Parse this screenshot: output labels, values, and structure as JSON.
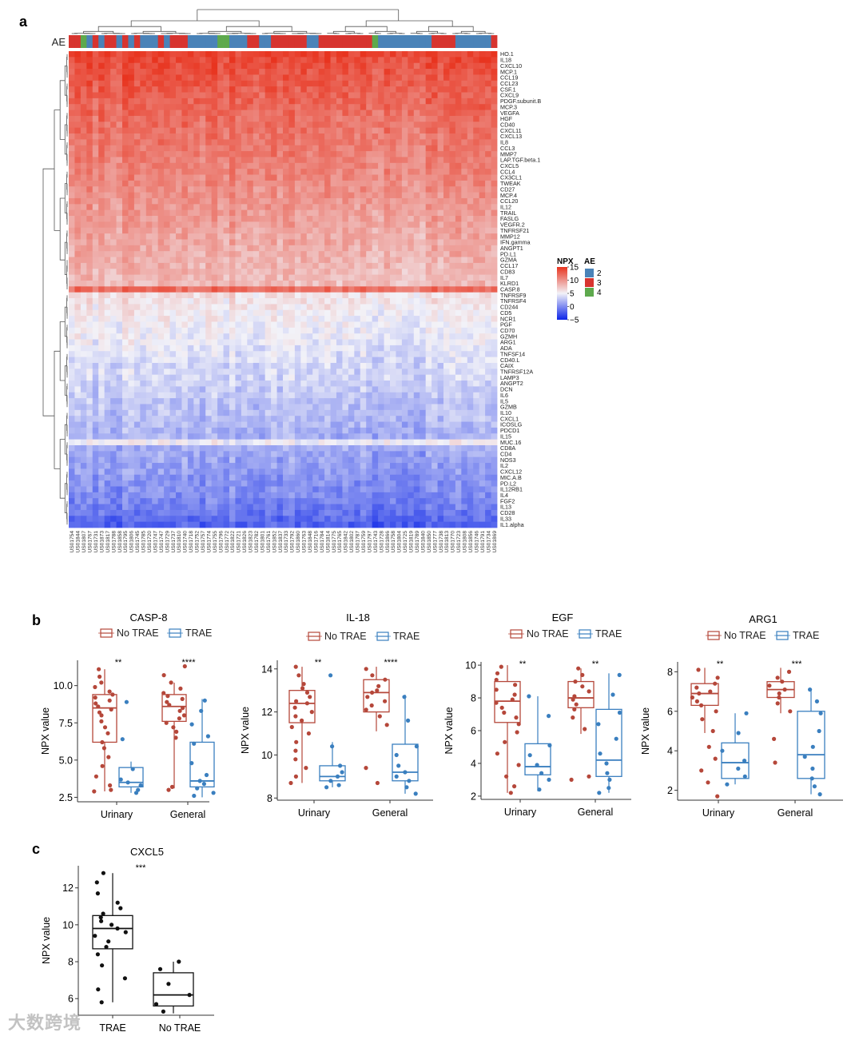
{
  "panels": {
    "a": "a",
    "b": "b",
    "c": "c"
  },
  "colors": {
    "no_trae": "#b5473a",
    "trae": "#3a7fbf",
    "ae2": "#4a83b8",
    "ae3": "#d7342f",
    "ae4": "#5ea94d",
    "heat_low": "#0b24e8",
    "heat_mid": "#f2f2f8",
    "heat_high": "#e8341f"
  },
  "chart_data": [
    {
      "type": "heatmap",
      "title": "",
      "annotation_label": "AE",
      "legend": {
        "npx_title": "NPX",
        "ae_title": "AE",
        "npx_ticks": [
          15,
          10,
          5,
          0,
          -5
        ],
        "ae_levels": [
          "2",
          "3",
          "4"
        ],
        "placement": "right"
      },
      "zlim": [
        -5,
        15
      ],
      "row_labels": [
        "HO.1",
        "IL18",
        "CXCL10",
        "MCP.1",
        "CCL19",
        "CCL23",
        "CSF.1",
        "CXCL9",
        "PDGF.subunit.B",
        "MCP.3",
        "VEGFA",
        "HGF",
        "CD40",
        "CXCL11",
        "CXCL13",
        "IL8",
        "CCL3",
        "MMP7",
        "LAP.TGF.beta.1",
        "CXCL5",
        "CCL4",
        "CX3CL1",
        "TWEAK",
        "CD27",
        "MCP.4",
        "CCL20",
        "IL12",
        "TRAIL",
        "FASLG",
        "VEGFR.2",
        "TNFRSF21",
        "MMP12",
        "IFN.gamma",
        "ANGPT1",
        "PD.L1",
        "GZMA",
        "CCL17",
        "CD83",
        "IL7",
        "KLRD1",
        "CASP.8",
        "TNFRSF9",
        "TNFRSF4",
        "CD244",
        "CD5",
        "NCR1",
        "PGF",
        "CD70",
        "GZMH",
        "ARG1",
        "ADA",
        "TNFSF14",
        "CD40.L",
        "CAIX",
        "TNFRSF12A",
        "LAMP3",
        "ANGPT2",
        "DCN",
        "IL6",
        "IL5",
        "GZMB",
        "IL10",
        "CXCL1",
        "ICOSLG",
        "PDCD1",
        "IL15",
        "MUC.16",
        "CD8A",
        "CD4",
        "NOS3",
        "IL2",
        "CXCL12",
        "MIC.A.B",
        "PD.L2",
        "IL12RB1",
        "IL4",
        "FGF2",
        "IL13",
        "CD28",
        "IL33",
        "IL1.alpha"
      ],
      "row_labels_shown": [
        "HO.1",
        "IL18",
        "CXCL10",
        "MCP.1",
        "CCL19",
        "CCL23",
        "CSF.1",
        "CXCL9",
        "PDGF.subunit.B",
        "MCP.3",
        "VEGFA",
        "HGF",
        "CD40",
        "CXCL11",
        "CXCL13",
        "IL8",
        "CCL3",
        "MMP7",
        "LAP.TGF.beta.1",
        "CXCL5",
        "CCL4",
        "CX3CL1",
        "TWEAK",
        "CD27",
        "MCP.4",
        "CCL20",
        "IL12",
        "TRAIL",
        "FASLG",
        "VEGFR.2",
        "TNFRSF21",
        "MMP12",
        "IFN.gamma",
        "ANGPT1",
        "PD.L1",
        "GZMA",
        "CCL17",
        "CD83",
        "IL7",
        "KLRD1",
        "CASP.8",
        "TNFRSF9",
        "TNFRSF4",
        "CD244",
        "CD5",
        "NCR1",
        "PGF",
        "CD70",
        "GZMH",
        "ARG1",
        "ADA",
        "TNFSF14",
        "CD40.L",
        "CAIX",
        "TNFRSF12A",
        "LAMP3",
        "ANGPT2",
        "DCN",
        "IL6",
        "IL5",
        "GZMB",
        "IL10",
        "CXCL1",
        "ICOSLG",
        "PDCD1",
        "IL15",
        "MUC.16",
        "CD8A",
        "CD4",
        "NOS3",
        "IL2",
        "CXCL12",
        "MIC.A.B",
        "PD.L2",
        "IL12RB1",
        "IL4",
        "FGF2",
        "IL13",
        "CD28",
        "IL33",
        "IL1.alpha"
      ],
      "row_profile": [
        14.2,
        13.9,
        13.6,
        13.4,
        13.3,
        13.1,
        12.9,
        12.7,
        12.6,
        12.4,
        12.2,
        12.0,
        11.9,
        11.8,
        11.7,
        11.5,
        11.4,
        11.3,
        11.1,
        11.0,
        10.9,
        10.7,
        10.5,
        10.3,
        10.2,
        10.0,
        9.8,
        9.7,
        9.5,
        9.4,
        9.2,
        9.0,
        8.9,
        8.8,
        8.6,
        8.5,
        8.4,
        8.2,
        8.0,
        7.9,
        12.0,
        6.0,
        5.8,
        5.6,
        5.4,
        5.2,
        5.0,
        4.9,
        4.8,
        4.6,
        4.4,
        4.2,
        4.0,
        3.8,
        3.7,
        3.6,
        3.4,
        3.2,
        3.0,
        2.8,
        2.6,
        2.5,
        2.4,
        2.2,
        2.0,
        1.8,
        5.0,
        1.6,
        1.4,
        1.2,
        1.0,
        0.8,
        0.6,
        0.4,
        0.2,
        0.0,
        -0.2,
        -0.6,
        -1.0,
        -1.4,
        -2.0
      ],
      "n_samples": 72,
      "ae_annotation": [
        3,
        3,
        4,
        2,
        3,
        2,
        3,
        3,
        2,
        3,
        2,
        3,
        2,
        2,
        2,
        3,
        2,
        3,
        3,
        3,
        2,
        2,
        2,
        2,
        2,
        4,
        4,
        2,
        2,
        2,
        3,
        3,
        2,
        2,
        3,
        3,
        3,
        3,
        3,
        3,
        2,
        2,
        3,
        3,
        3,
        3,
        3,
        3,
        3,
        3,
        3,
        4,
        2,
        2,
        2,
        2,
        2,
        2,
        2,
        2,
        2,
        3,
        3,
        3,
        3,
        2,
        2,
        2,
        2,
        2,
        2,
        3,
        3,
        3,
        2,
        3,
        3,
        4,
        2,
        2,
        3,
        3,
        2,
        4,
        4,
        4,
        3,
        3
      ],
      "column_labels": [
        "US01754",
        "US01844",
        "US01807",
        "US01767",
        "US01731",
        "US01873",
        "US01817",
        "US01788",
        "US01858",
        "US01795",
        "US01806",
        "US01745",
        "US01785",
        "US01720",
        "US01747",
        "US01747",
        "US01729",
        "US01737",
        "US01810",
        "US01740",
        "US01718",
        "US01752",
        "US01757",
        "US01774",
        "US01755",
        "US01796",
        "US01772",
        "US01822",
        "US01721",
        "US01826",
        "US01823",
        "US01782",
        "US01801",
        "US01761",
        "US01852",
        "US01837",
        "US01733",
        "US01792",
        "US01860",
        "US01763",
        "US01848",
        "US01716",
        "US01784",
        "US01814",
        "US01775",
        "US01765",
        "US01842",
        "US01802",
        "US01787",
        "US01759",
        "US01797",
        "US01743",
        "US01728",
        "US01866",
        "US01758",
        "US01804",
        "US01725",
        "US01819",
        "US01789",
        "US01840",
        "US01850",
        "US01777",
        "US01738",
        "US01813",
        "US01770",
        "US01723",
        "US01808",
        "US01856",
        "US01746",
        "US01791",
        "US01734",
        "US01869"
      ]
    },
    {
      "type": "box",
      "title": "CASP-8",
      "legend": [
        "No TRAE",
        "TRAE"
      ],
      "xlabel": "",
      "ylabel": "NPX value",
      "categories": [
        "Urinary",
        "General"
      ],
      "ylim": [
        2.2,
        11.7
      ],
      "yticks": [
        "2.5",
        "5.0",
        "7.5",
        "10.0"
      ],
      "significance": [
        "**",
        "****"
      ],
      "groups": [
        {
          "category": "Urinary",
          "series": "No TRAE",
          "q1": 6.2,
          "median": 8.5,
          "q3": 9.4,
          "lo": 2.9,
          "hi": 11.1,
          "points": [
            11.1,
            10.6,
            10.2,
            9.9,
            9.6,
            9.4,
            9.2,
            9.0,
            8.8,
            8.6,
            8.4,
            8.2,
            8.0,
            7.6,
            7.2,
            6.8,
            6.2,
            5.8,
            5.2,
            4.6,
            3.9,
            3.3,
            3.0,
            2.9
          ]
        },
        {
          "category": "Urinary",
          "series": "TRAE",
          "q1": 3.2,
          "median": 3.5,
          "q3": 4.5,
          "lo": 2.8,
          "hi": 4.9,
          "points": [
            8.9,
            6.4,
            4.4,
            3.7,
            3.5,
            3.3,
            3.0,
            2.8
          ]
        },
        {
          "category": "General",
          "series": "No TRAE",
          "q1": 7.6,
          "median": 8.6,
          "q3": 9.4,
          "lo": 3.1,
          "hi": 10.2,
          "points": [
            11.3,
            10.7,
            10.2,
            9.8,
            9.5,
            9.3,
            9.1,
            8.9,
            8.7,
            8.5,
            8.3,
            8.0,
            7.8,
            7.5,
            7.2,
            6.9,
            6.5,
            3.2,
            3.0
          ]
        },
        {
          "category": "General",
          "series": "TRAE",
          "q1": 3.2,
          "median": 3.6,
          "q3": 6.2,
          "lo": 2.5,
          "hi": 9.1,
          "points": [
            9.0,
            8.3,
            7.4,
            6.6,
            6.1,
            4.8,
            4.0,
            3.6,
            3.4,
            3.1,
            2.8,
            2.6
          ]
        }
      ]
    },
    {
      "type": "box",
      "title": "IL-18",
      "legend": [
        "No TRAE",
        "TRAE"
      ],
      "xlabel": "",
      "ylabel": "NPX value",
      "categories": [
        "Urinary",
        "General"
      ],
      "ylim": [
        7.9,
        14.4
      ],
      "yticks": [
        "8",
        "10",
        "12",
        "14"
      ],
      "significance": [
        "**",
        "****"
      ],
      "groups": [
        {
          "category": "Urinary",
          "series": "No TRAE",
          "q1": 11.5,
          "median": 12.4,
          "q3": 13.0,
          "lo": 8.7,
          "hi": 14.1,
          "points": [
            14.1,
            13.7,
            13.3,
            13.1,
            12.9,
            12.7,
            12.5,
            12.4,
            12.2,
            12.0,
            11.8,
            11.6,
            11.3,
            11.0,
            10.6,
            10.2,
            9.8,
            9.4,
            9.0,
            8.7
          ]
        },
        {
          "category": "Urinary",
          "series": "TRAE",
          "q1": 8.8,
          "median": 9.0,
          "q3": 9.5,
          "lo": 8.5,
          "hi": 10.6,
          "points": [
            13.7,
            10.4,
            9.5,
            9.2,
            9.0,
            8.8,
            8.6,
            8.5
          ]
        },
        {
          "category": "General",
          "series": "No TRAE",
          "q1": 12.0,
          "median": 12.9,
          "q3": 13.5,
          "lo": 11.1,
          "hi": 14.1,
          "points": [
            14.0,
            13.7,
            13.5,
            13.2,
            13.0,
            12.9,
            12.7,
            12.5,
            12.3,
            12.1,
            11.8,
            11.4,
            9.4,
            8.7
          ]
        },
        {
          "category": "General",
          "series": "TRAE",
          "q1": 8.8,
          "median": 9.2,
          "q3": 10.5,
          "lo": 8.2,
          "hi": 12.8,
          "points": [
            12.7,
            11.6,
            10.4,
            10.0,
            9.5,
            9.2,
            9.0,
            8.8,
            8.5,
            8.2
          ]
        }
      ]
    },
    {
      "type": "box",
      "title": "EGF",
      "legend": [
        "No TRAE",
        "TRAE"
      ],
      "xlabel": "",
      "ylabel": "NPX value",
      "categories": [
        "Urinary",
        "General"
      ],
      "ylim": [
        1.8,
        10.2
      ],
      "yticks": [
        "2",
        "4",
        "6",
        "8",
        "10"
      ],
      "significance": [
        "**",
        "**"
      ],
      "groups": [
        {
          "category": "Urinary",
          "series": "No TRAE",
          "q1": 6.5,
          "median": 7.8,
          "q3": 9.0,
          "lo": 2.2,
          "hi": 10.0,
          "points": [
            9.9,
            9.5,
            9.1,
            8.8,
            8.5,
            8.2,
            7.9,
            7.7,
            7.4,
            7.1,
            6.8,
            6.4,
            5.9,
            5.3,
            4.6,
            3.9,
            3.2,
            2.6,
            2.2
          ]
        },
        {
          "category": "Urinary",
          "series": "TRAE",
          "q1": 3.3,
          "median": 3.8,
          "q3": 5.2,
          "lo": 2.3,
          "hi": 8.1,
          "points": [
            8.1,
            6.9,
            5.1,
            4.5,
            3.9,
            3.4,
            3.0,
            2.4
          ]
        },
        {
          "category": "General",
          "series": "No TRAE",
          "q1": 7.4,
          "median": 8.0,
          "q3": 9.0,
          "lo": 5.8,
          "hi": 9.8,
          "points": [
            9.8,
            9.4,
            9.0,
            8.7,
            8.4,
            8.1,
            7.9,
            7.6,
            7.3,
            6.8,
            6.1,
            3.2,
            3.0
          ]
        },
        {
          "category": "General",
          "series": "TRAE",
          "q1": 3.2,
          "median": 4.2,
          "q3": 7.3,
          "lo": 2.2,
          "hi": 9.5,
          "points": [
            9.4,
            8.2,
            7.1,
            6.4,
            5.5,
            4.6,
            4.0,
            3.4,
            3.0,
            2.5,
            2.2
          ]
        }
      ]
    },
    {
      "type": "box",
      "title": "ARG1",
      "legend": [
        "No TRAE",
        "TRAE"
      ],
      "xlabel": "",
      "ylabel": "NPX value",
      "categories": [
        "Urinary",
        "General"
      ],
      "ylim": [
        1.5,
        8.5
      ],
      "yticks": [
        "2",
        "4",
        "6",
        "8"
      ],
      "significance": [
        "**",
        "***"
      ],
      "groups": [
        {
          "category": "Urinary",
          "series": "No TRAE",
          "q1": 6.3,
          "median": 6.9,
          "q3": 7.4,
          "lo": 4.9,
          "hi": 8.2,
          "points": [
            8.1,
            7.7,
            7.4,
            7.2,
            7.0,
            6.9,
            6.7,
            6.5,
            6.3,
            6.0,
            5.6,
            5.0,
            4.2,
            3.6,
            3.0,
            2.4,
            1.7
          ]
        },
        {
          "category": "Urinary",
          "series": "TRAE",
          "q1": 2.6,
          "median": 3.4,
          "q3": 4.4,
          "lo": 2.3,
          "hi": 5.9,
          "points": [
            5.9,
            4.9,
            4.0,
            3.5,
            3.1,
            2.7,
            2.3
          ]
        },
        {
          "category": "General",
          "series": "No TRAE",
          "q1": 6.7,
          "median": 7.1,
          "q3": 7.5,
          "lo": 5.9,
          "hi": 8.2,
          "points": [
            8.0,
            7.7,
            7.5,
            7.3,
            7.1,
            6.9,
            6.7,
            6.4,
            6.0,
            4.6,
            3.4
          ]
        },
        {
          "category": "General",
          "series": "TRAE",
          "q1": 2.6,
          "median": 3.8,
          "q3": 6.0,
          "lo": 1.8,
          "hi": 7.1,
          "points": [
            7.1,
            6.5,
            5.9,
            5.0,
            4.2,
            3.7,
            3.1,
            2.6,
            2.2,
            1.8
          ]
        }
      ]
    },
    {
      "type": "box",
      "title": "CXCL5",
      "xlabel": "",
      "ylabel": "NPX value",
      "categories": [
        "TRAE",
        "No TRAE"
      ],
      "ylim": [
        5.1,
        13.2
      ],
      "yticks": [
        "6",
        "8",
        "10",
        "12"
      ],
      "significance": [
        "***"
      ],
      "groups": [
        {
          "category": "TRAE",
          "q1": 8.7,
          "median": 9.8,
          "q3": 10.5,
          "lo": 5.8,
          "hi": 12.8,
          "points": [
            12.8,
            12.3,
            11.7,
            11.2,
            10.9,
            10.6,
            10.4,
            10.2,
            10.0,
            9.8,
            9.6,
            9.4,
            9.1,
            8.8,
            8.4,
            7.8,
            7.1,
            6.5,
            5.8
          ]
        },
        {
          "category": "No TRAE",
          "q1": 5.6,
          "median": 6.2,
          "q3": 7.4,
          "lo": 5.2,
          "hi": 8.0,
          "points": [
            8.0,
            7.6,
            6.8,
            6.2,
            5.7,
            5.3
          ]
        }
      ]
    }
  ],
  "watermark": "大数跨境"
}
